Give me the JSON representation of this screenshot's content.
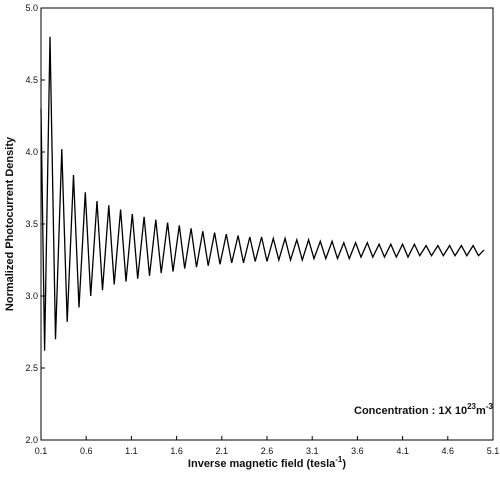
{
  "chart_data": {
    "type": "line",
    "title": "",
    "xlabel": {
      "main": "Inverse magnetic field (tesla",
      "sup": "-1",
      "tail": ")"
    },
    "ylabel": "Normalized Photocurrent Density",
    "xlim": [
      0.1,
      5.1
    ],
    "ylim": [
      2.0,
      5.0
    ],
    "xticks": [
      "0.1",
      "0.6",
      "1.1",
      "1.6",
      "2.1",
      "2.6",
      "3.1",
      "3.6",
      "4.1",
      "4.6",
      "5.1"
    ],
    "yticks": [
      "2.0",
      "2.5",
      "3.0",
      "3.5",
      "4.0",
      "4.5",
      "5.0"
    ],
    "grid": false,
    "legend": "none",
    "annotation": {
      "prefix": "Concentration : 1X 10",
      "exp1": "23",
      "mid": "m",
      "exp2": "-3"
    },
    "line_color": "#000000",
    "series": [
      {
        "x": [
          0.1,
          0.14,
          0.2,
          0.26,
          0.33,
          0.39,
          0.46,
          0.52,
          0.59,
          0.65,
          0.72,
          0.78,
          0.85,
          0.91,
          0.98,
          1.04,
          1.11,
          1.17,
          1.24,
          1.3,
          1.37,
          1.43,
          1.5,
          1.56,
          1.63,
          1.69,
          1.76,
          1.82,
          1.89,
          1.95,
          2.02,
          2.08,
          2.15,
          2.21,
          2.28,
          2.34,
          2.41,
          2.47,
          2.54,
          2.6,
          2.67,
          2.73,
          2.8,
          2.86,
          2.93,
          2.99,
          3.06,
          3.12,
          3.19,
          3.25,
          3.32,
          3.38,
          3.45,
          3.51,
          3.58,
          3.64,
          3.71,
          3.77,
          3.84,
          3.9,
          3.97,
          4.03,
          4.1,
          4.16,
          4.23,
          4.29,
          4.36,
          4.42,
          4.49,
          4.55,
          4.62,
          4.68,
          4.75,
          4.81,
          4.88,
          4.94,
          5.0
        ],
        "y": [
          4.3,
          2.62,
          4.8,
          2.7,
          4.02,
          2.82,
          3.84,
          2.92,
          3.72,
          3.0,
          3.66,
          3.04,
          3.63,
          3.08,
          3.6,
          3.1,
          3.57,
          3.12,
          3.55,
          3.14,
          3.53,
          3.16,
          3.51,
          3.17,
          3.49,
          3.19,
          3.47,
          3.2,
          3.45,
          3.21,
          3.44,
          3.22,
          3.43,
          3.23,
          3.42,
          3.23,
          3.41,
          3.24,
          3.41,
          3.24,
          3.4,
          3.25,
          3.4,
          3.25,
          3.39,
          3.25,
          3.39,
          3.26,
          3.38,
          3.26,
          3.38,
          3.26,
          3.37,
          3.26,
          3.37,
          3.27,
          3.37,
          3.27,
          3.36,
          3.27,
          3.36,
          3.27,
          3.36,
          3.27,
          3.36,
          3.28,
          3.35,
          3.28,
          3.35,
          3.28,
          3.35,
          3.28,
          3.35,
          3.28,
          3.35,
          3.28,
          3.32
        ]
      }
    ]
  }
}
